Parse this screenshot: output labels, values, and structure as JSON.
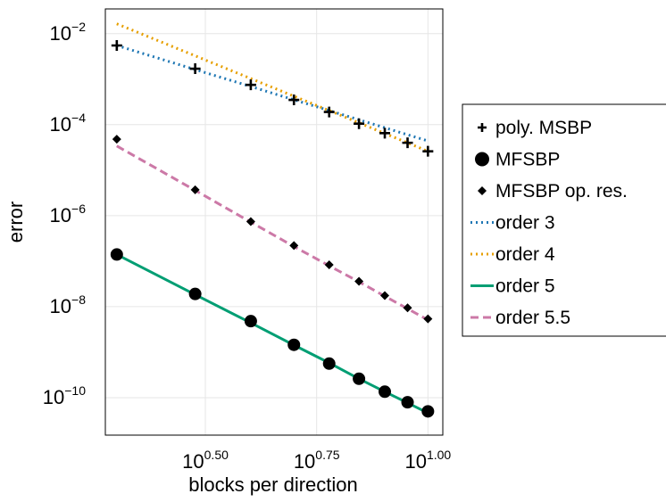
{
  "chart_data": {
    "type": "scatter",
    "xscale": "log",
    "yscale": "log",
    "xlabel": "blocks per direction",
    "ylabel": "error",
    "xlim": [
      1.885,
      10.8
    ],
    "ylim": [
      1.5e-11,
      0.035
    ],
    "grid": true,
    "legend_position": "right",
    "x_ticks": [
      {
        "value": 3.1623,
        "base": "10",
        "exp": "0.50"
      },
      {
        "value": 5.6234,
        "base": "10",
        "exp": "0.75"
      },
      {
        "value": 10,
        "base": "10",
        "exp": "1.00"
      }
    ],
    "y_ticks": [
      {
        "value": 0.01,
        "base": "10",
        "exp": "−2"
      },
      {
        "value": 0.0001,
        "base": "10",
        "exp": "−4"
      },
      {
        "value": 1e-06,
        "base": "10",
        "exp": "−6"
      },
      {
        "value": 1e-08,
        "base": "10",
        "exp": "−8"
      },
      {
        "value": 1e-10,
        "base": "10",
        "exp": "−10"
      }
    ],
    "x": [
      2,
      3,
      4,
      5,
      6,
      7,
      8,
      9,
      10
    ],
    "series": [
      {
        "name": "poly. MSBP",
        "kind": "marker",
        "marker": "cross",
        "color": "#000000",
        "y": [
          0.0055,
          0.0017,
          0.00075,
          0.00035,
          0.00019,
          0.000105,
          6.5e-05,
          4e-05,
          2.6e-05
        ]
      },
      {
        "name": "MFSBP",
        "kind": "marker",
        "marker": "circle",
        "color": "#000000",
        "y": [
          1.4e-07,
          1.9e-08,
          4.8e-09,
          1.45e-09,
          5.6e-10,
          2.6e-10,
          1.35e-10,
          7.9e-11,
          5e-11
        ]
      },
      {
        "name": "MFSBP op. res.",
        "kind": "marker",
        "marker": "diamond",
        "color": "#000000",
        "y": [
          4.8e-05,
          3.7e-06,
          7.4e-07,
          2.2e-07,
          8.3e-08,
          3.6e-08,
          1.75e-08,
          9.4e-09,
          5.4e-09
        ]
      },
      {
        "name": "order 3",
        "kind": "line",
        "dash": "dot",
        "color": "#1f77b4",
        "y": [
          0.0055,
          0.00163,
          0.00069,
          0.000352,
          0.000204,
          0.000128,
          8.6e-05,
          6e-05,
          4.4e-05
        ]
      },
      {
        "name": "order 4",
        "kind": "line",
        "dash": "dot",
        "color": "#e69f00",
        "y": [
          0.0165,
          0.00326,
          0.00103,
          0.000422,
          0.000204,
          0.00011,
          6.4e-05,
          4e-05,
          2.6e-05
        ]
      },
      {
        "name": "order 5",
        "kind": "line",
        "dash": "solid",
        "color": "#009e73",
        "y": [
          1.4e-07,
          1.84e-08,
          4.4e-09,
          1.43e-09,
          5.8e-10,
          2.6e-10,
          1.35e-10,
          7.7e-11,
          4.6e-11
        ]
      },
      {
        "name": "order 5.5",
        "kind": "line",
        "dash": "dash",
        "color": "#cc79a7",
        "y": [
          3.4e-05,
          3.6e-06,
          7.2e-07,
          2.1e-07,
          7.9e-08,
          3.5e-08,
          1.7e-08,
          9e-09,
          5.1e-09
        ]
      }
    ]
  }
}
